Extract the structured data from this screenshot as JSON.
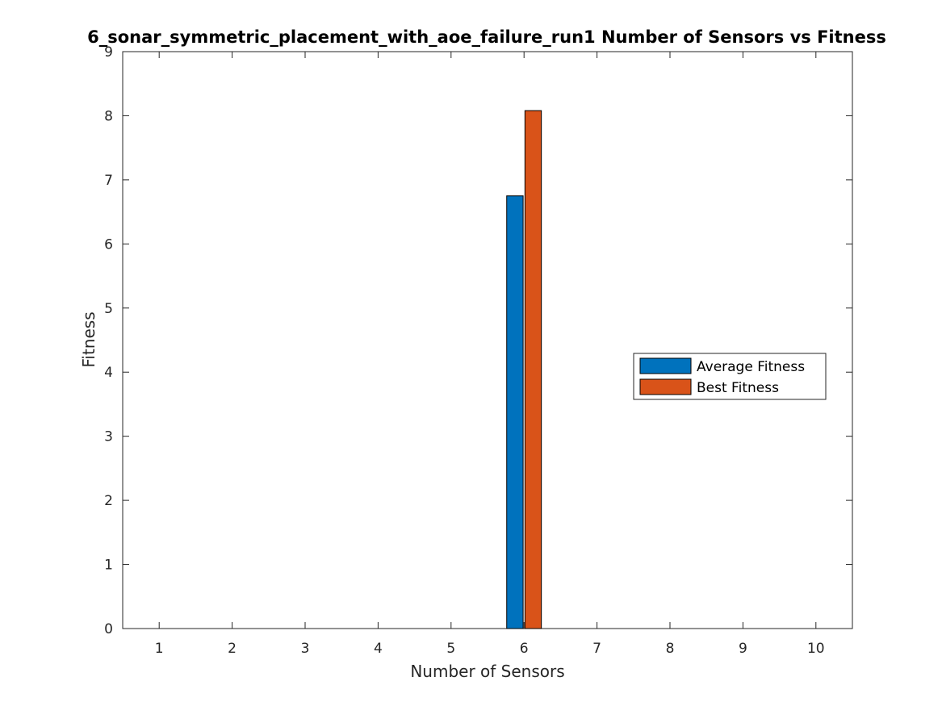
{
  "chart_data": {
    "type": "bar",
    "title": "6_sonar_symmetric_placement_with_aoe_failure_run1 Number of Sensors vs Fitness",
    "xlabel": "Number of Sensors",
    "ylabel": "Fitness",
    "categories": [
      "1",
      "2",
      "3",
      "4",
      "5",
      "6",
      "7",
      "8",
      "9",
      "10"
    ],
    "xlim": [
      0.5,
      10.5
    ],
    "ylim": [
      0,
      9
    ],
    "yticks": [
      "0",
      "1",
      "2",
      "3",
      "4",
      "5",
      "6",
      "7",
      "8",
      "9"
    ],
    "grid": false,
    "legend_position": "right",
    "series": [
      {
        "name": "Average Fitness",
        "color": "#0072BD",
        "values": [
          0,
          0,
          0,
          0,
          0,
          6.75,
          0,
          0,
          0,
          0
        ]
      },
      {
        "name": "Best Fitness",
        "color": "#D95319",
        "values": [
          0,
          0,
          0,
          0,
          0,
          8.08,
          0,
          0,
          0,
          0
        ]
      }
    ]
  }
}
